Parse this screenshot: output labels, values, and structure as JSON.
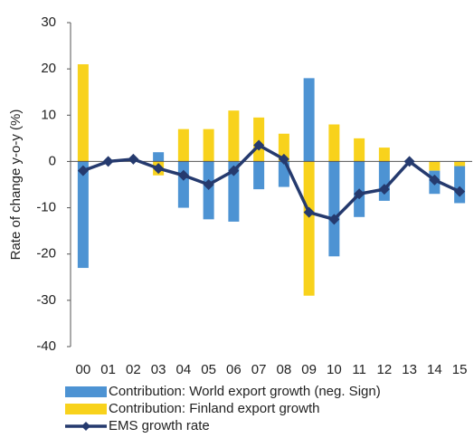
{
  "chart_data": {
    "type": "bar-line",
    "y_axis_label": "Rate of change y-o-y (%)",
    "categories": [
      "00",
      "01",
      "02",
      "03",
      "04",
      "05",
      "06",
      "07",
      "08",
      "09",
      "10",
      "11",
      "12",
      "13",
      "14",
      "15"
    ],
    "series": [
      {
        "name": "Contribution: World export growth (neg. Sign)",
        "type": "bar",
        "color": "#4d93d3",
        "values": [
          -23,
          0,
          0,
          2,
          -10,
          -12.5,
          -13,
          -6,
          -5.5,
          18,
          -20.5,
          -12,
          -8.5,
          0,
          -5,
          -8
        ]
      },
      {
        "name": "Contribution: Finland export growth",
        "type": "bar",
        "color": "#f8d21c",
        "values": [
          21,
          0,
          0,
          -3,
          7,
          7,
          11,
          9.5,
          6,
          -29,
          8,
          5,
          3,
          0,
          -2,
          -1
        ]
      },
      {
        "name": "EMS growth rate",
        "type": "line",
        "color": "#253a6e",
        "values": [
          -2,
          0,
          0.5,
          -1.5,
          -3,
          -5,
          -2,
          3.5,
          0.5,
          -11,
          -12.5,
          -7,
          -6,
          0,
          -4,
          -6.5
        ]
      }
    ],
    "stacked": true,
    "ylim": [
      -40,
      30
    ],
    "yticks": [
      -40,
      -30,
      -20,
      -10,
      0,
      10,
      20,
      30
    ]
  }
}
